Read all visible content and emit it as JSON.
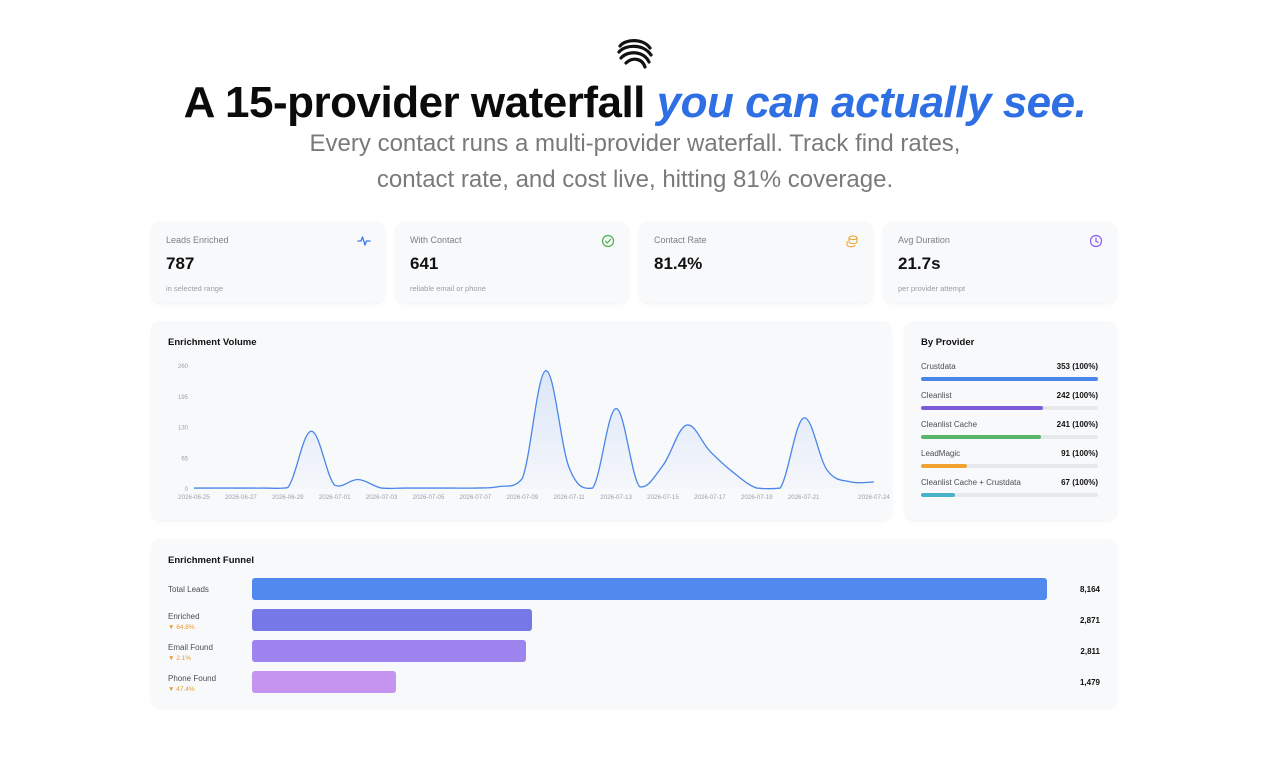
{
  "header": {
    "logo_icon": "striped-wave-logo",
    "title_main": "A 15-provider waterfall ",
    "title_accent": "you can actually see.",
    "subtitle_line1": "Every contact runs a multi-provider waterfall. Track find rates,",
    "subtitle_line2": "contact rate, and cost live, hitting 81% coverage."
  },
  "kpis": [
    {
      "label": "Leads Enriched",
      "value": "787",
      "note": "in selected range",
      "icon": "activity-pulse-icon",
      "color": "#3b7bea"
    },
    {
      "label": "With Contact",
      "value": "641",
      "note": "reliable email or phone",
      "icon": "check-circle-icon",
      "color": "#4caf50"
    },
    {
      "label": "Contact Rate",
      "value": "81.4%",
      "note": "",
      "icon": "coins-icon",
      "color": "#f0a32e"
    },
    {
      "label": "Avg Duration",
      "value": "21.7s",
      "note": "per provider attempt",
      "icon": "clock-icon",
      "color": "#8b5cf6"
    }
  ],
  "volume": {
    "title": "Enrichment Volume",
    "line_color": "#4a86e8"
  },
  "chart_data": {
    "type": "area",
    "title": "Enrichment Volume",
    "xlabel": "",
    "ylabel": "",
    "ylim": [
      0,
      260
    ],
    "yticks": [
      0,
      65,
      130,
      195,
      260
    ],
    "x_tick_labels": [
      "2026-06-25",
      "2026-06-27",
      "2026-06-29",
      "2026-07-01",
      "2026-07-03",
      "2026-07-05",
      "2026-07-07",
      "2026-07-09",
      "2026-07-11",
      "2026-07-13",
      "2026-07-15",
      "2026-07-17",
      "2026-07-19",
      "2026-07-21",
      "2026-07-24"
    ],
    "x": [
      "2026-06-25",
      "2026-06-26",
      "2026-06-27",
      "2026-06-28",
      "2026-06-29",
      "2026-06-30",
      "2026-07-01",
      "2026-07-02",
      "2026-07-03",
      "2026-07-04",
      "2026-07-05",
      "2026-07-06",
      "2026-07-07",
      "2026-07-08",
      "2026-07-09",
      "2026-07-10",
      "2026-07-11",
      "2026-07-12",
      "2026-07-13",
      "2026-07-14",
      "2026-07-15",
      "2026-07-16",
      "2026-07-17",
      "2026-07-18",
      "2026-07-19",
      "2026-07-20",
      "2026-07-21",
      "2026-07-22",
      "2026-07-23",
      "2026-07-24"
    ],
    "series": [
      {
        "values": [
          2,
          2,
          2,
          2,
          3,
          122,
          8,
          20,
          2,
          2,
          2,
          2,
          2,
          5,
          22,
          250,
          45,
          2,
          170,
          5,
          50,
          135,
          80,
          35,
          2,
          2,
          150,
          40,
          15,
          15
        ]
      }
    ],
    "grid": false
  },
  "providers": {
    "title": "By Provider",
    "items": [
      {
        "name": "Crustdata",
        "count": "353 (100%)",
        "fraction": 1.0,
        "color": "#4a86e8"
      },
      {
        "name": "Cleanlist",
        "count": "242 (100%)",
        "fraction": 0.69,
        "color": "#7b5cd6"
      },
      {
        "name": "Cleanlist Cache",
        "count": "241 (100%)",
        "fraction": 0.68,
        "color": "#58b66a"
      },
      {
        "name": "LeadMagic",
        "count": "91 (100%)",
        "fraction": 0.26,
        "color": "#f0a32e"
      },
      {
        "name": "Cleanlist Cache + Crustdata",
        "count": "67 (100%)",
        "fraction": 0.19,
        "color": "#47b2c9"
      }
    ]
  },
  "funnel": {
    "title": "Enrichment Funnel",
    "rows": [
      {
        "label": "Total Leads",
        "delta": "",
        "value": "8,164",
        "number": 8164,
        "color": "#5289ef"
      },
      {
        "label": "Enriched",
        "delta": "▼ 64.8%",
        "value": "2,871",
        "number": 2871,
        "color": "#7578e6"
      },
      {
        "label": "Email Found",
        "delta": "▼ 2.1%",
        "value": "2,811",
        "number": 2811,
        "color": "#9d84ee"
      },
      {
        "label": "Phone Found",
        "delta": "▼ 47.4%",
        "value": "1,479",
        "number": 1479,
        "color": "#c594ef"
      }
    ]
  }
}
